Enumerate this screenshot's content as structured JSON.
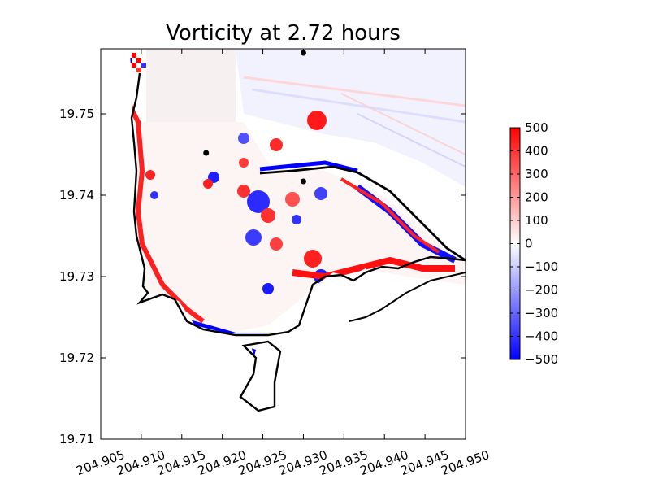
{
  "chart_data": {
    "type": "heatmap",
    "title": "Vorticity at 2.72 hours",
    "xlabel": "",
    "ylabel": "",
    "xlim": [
      204.905,
      204.95
    ],
    "ylim": [
      19.71,
      19.758
    ],
    "x_ticks": [
      "204.905",
      "204.910",
      "204.915",
      "204.920",
      "204.925",
      "204.930",
      "204.935",
      "204.940",
      "204.945",
      "204.950"
    ],
    "y_ticks": [
      "19.71",
      "19.72",
      "19.73",
      "19.74",
      "19.75"
    ],
    "colorbar": {
      "min": -500,
      "max": 500,
      "ticks": [
        "500",
        "400",
        "300",
        "200",
        "100",
        "0",
        "−100",
        "−200",
        "−300",
        "−400",
        "−500"
      ],
      "colormap": [
        "#0000ff",
        "#ffffff",
        "#ff0000"
      ]
    },
    "markers": [
      {
        "x": 204.93,
        "y": 19.7575
      },
      {
        "x": 204.918,
        "y": 19.7452
      },
      {
        "x": 204.93,
        "y": 19.7417
      }
    ],
    "land_color": "#ffffff",
    "coastline_color": "#000000"
  }
}
